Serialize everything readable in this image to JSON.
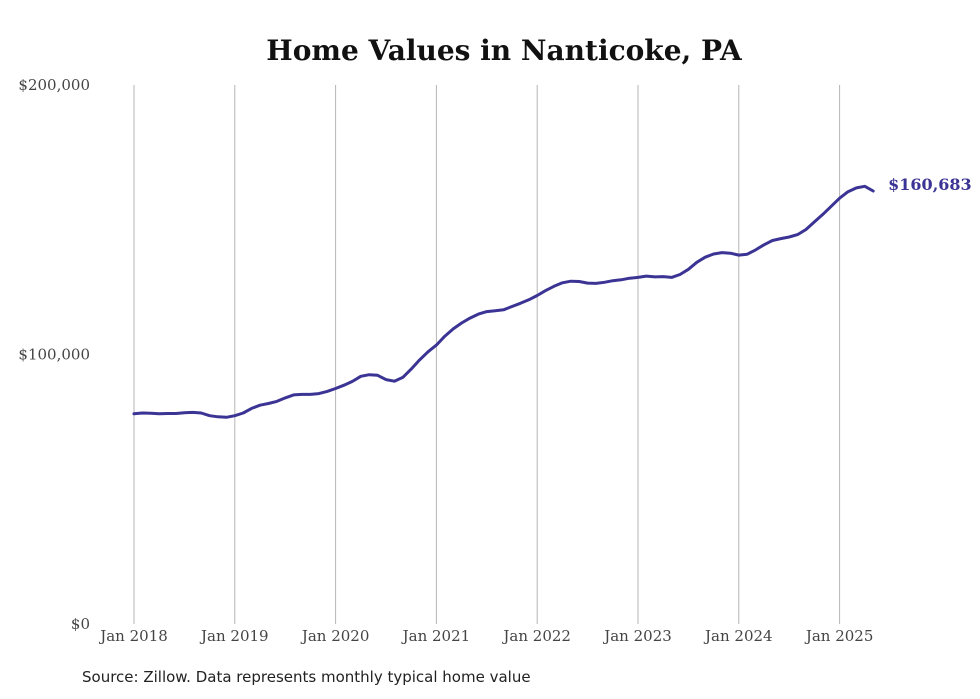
{
  "chart_data": {
    "type": "line",
    "title": "Home Values in Nanticoke, PA",
    "xlabel": "",
    "ylabel": "",
    "ylim": [
      0,
      200000
    ],
    "y_ticks": [
      {
        "value": 0,
        "label": "$0"
      },
      {
        "value": 100000,
        "label": "$100,000"
      },
      {
        "value": 200000,
        "label": "$200,000"
      }
    ],
    "x_ticks": [
      {
        "value": 2018,
        "label": "Jan 2018"
      },
      {
        "value": 2019,
        "label": "Jan 2019"
      },
      {
        "value": 2020,
        "label": "Jan 2020"
      },
      {
        "value": 2021,
        "label": "Jan 2021"
      },
      {
        "value": 2022,
        "label": "Jan 2022"
      },
      {
        "value": 2023,
        "label": "Jan 2023"
      },
      {
        "value": 2024,
        "label": "Jan 2024"
      },
      {
        "value": 2025,
        "label": "Jan 2025"
      }
    ],
    "grid": {
      "vertical": true,
      "horizontal": false
    },
    "line_color": "#3b3494",
    "grid_color": "#b5b5b5",
    "end_label": "$160,683",
    "series": [
      {
        "x": [
          2018.0,
          2018.083,
          2018.167,
          2018.25,
          2018.333,
          2018.417,
          2018.5,
          2018.583,
          2018.667,
          2018.75,
          2018.833,
          2018.917,
          2019.0,
          2019.083,
          2019.167,
          2019.25,
          2019.333,
          2019.417,
          2019.5,
          2019.583,
          2019.667,
          2019.75,
          2019.833,
          2019.917,
          2020.0,
          2020.083,
          2020.167,
          2020.25,
          2020.333,
          2020.417,
          2020.5,
          2020.583,
          2020.667,
          2020.75,
          2020.833,
          2020.917,
          2021.0,
          2021.083,
          2021.167,
          2021.25,
          2021.333,
          2021.417,
          2021.5,
          2021.583,
          2021.667,
          2021.75,
          2021.833,
          2021.917,
          2022.0,
          2022.083,
          2022.167,
          2022.25,
          2022.333,
          2022.417,
          2022.5,
          2022.583,
          2022.667,
          2022.75,
          2022.833,
          2022.917,
          2023.0,
          2023.083,
          2023.167,
          2023.25,
          2023.333,
          2023.417,
          2023.5,
          2023.583,
          2023.667,
          2023.75,
          2023.833,
          2023.917,
          2024.0,
          2024.083,
          2024.167,
          2024.25,
          2024.333,
          2024.417,
          2024.5,
          2024.583,
          2024.667,
          2024.75,
          2024.833,
          2024.917,
          2025.0,
          2025.083,
          2025.167,
          2025.25,
          2025.333
        ],
        "values": [
          78000,
          78300,
          78200,
          78000,
          78100,
          78100,
          78400,
          78500,
          78300,
          77300,
          76900,
          76700,
          77300,
          78300,
          80000,
          81200,
          81800,
          82600,
          83900,
          85000,
          85200,
          85200,
          85500,
          86300,
          87400,
          88600,
          90000,
          91900,
          92500,
          92300,
          90700,
          90100,
          91500,
          94600,
          98000,
          101000,
          103500,
          106800,
          109500,
          111700,
          113500,
          115000,
          115900,
          116200,
          116600,
          117800,
          119000,
          120300,
          121900,
          123700,
          125300,
          126600,
          127200,
          127100,
          126500,
          126400,
          126800,
          127400,
          127700,
          128300,
          128600,
          129100,
          128800,
          128900,
          128600,
          129700,
          131600,
          134200,
          136100,
          137300,
          137800,
          137600,
          136900,
          137200,
          138800,
          140700,
          142300,
          143000,
          143600,
          144500,
          146400,
          149200,
          152000,
          155000,
          158000,
          160400,
          161800,
          162400,
          160683
        ]
      }
    ]
  },
  "source_note": "Source: Zillow. Data represents monthly typical home value"
}
